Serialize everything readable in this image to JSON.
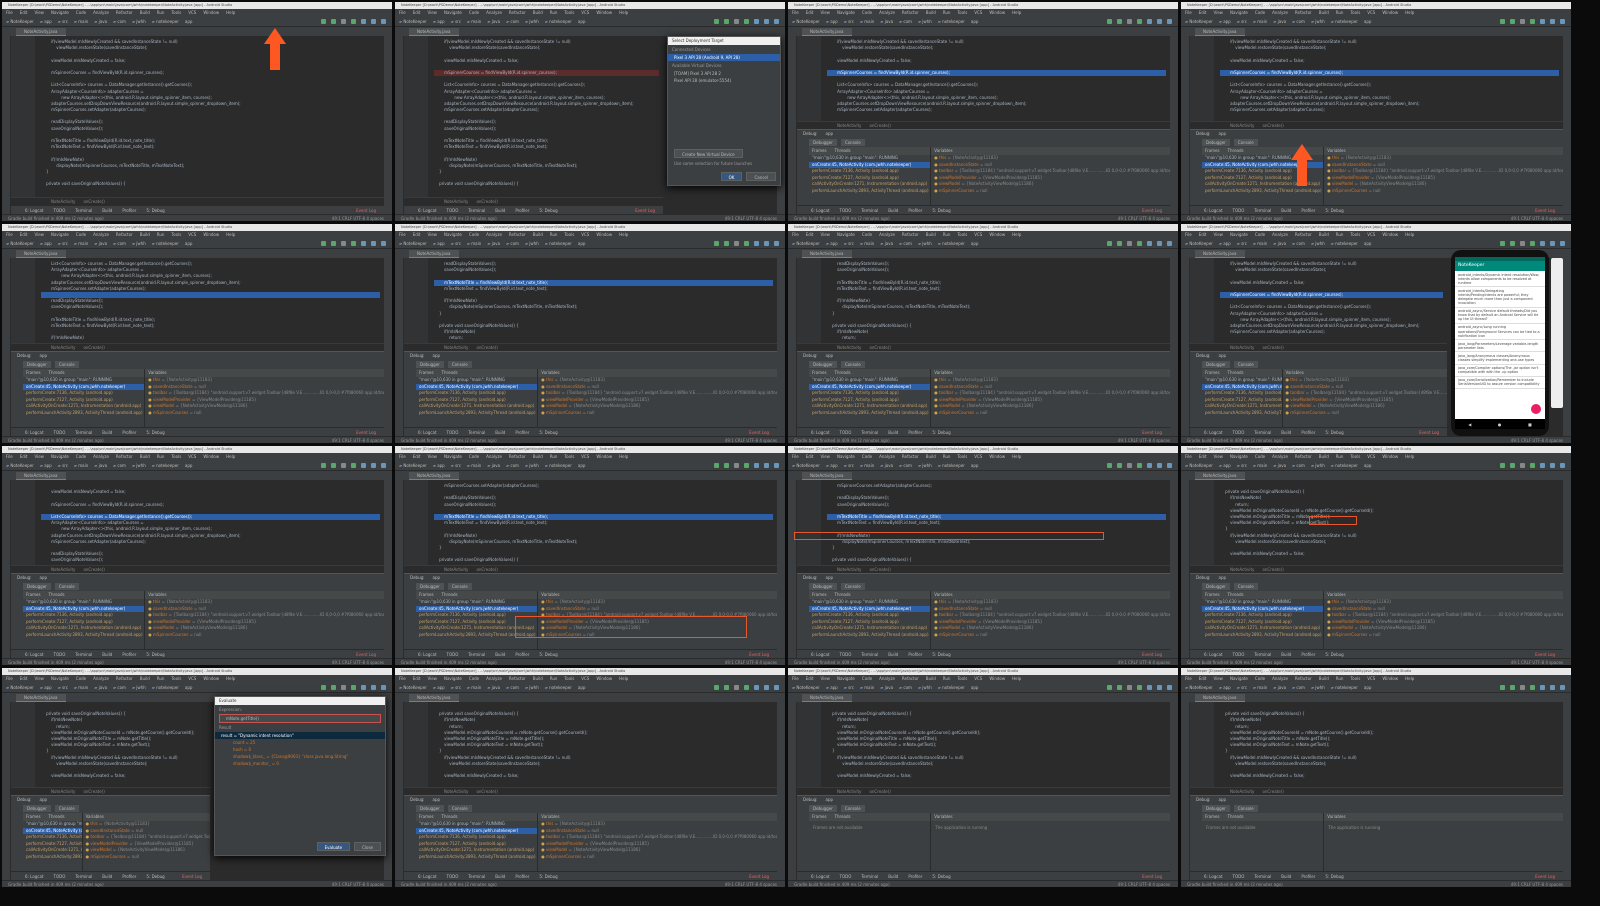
{
  "window_title": "NoteKeeper [D:\\work\\PSDemo\\NoteKeeper] - ...\\app\\src\\main\\java\\com\\jwhh\\notekeeper\\NoteActivity.java [app] - Android Studio",
  "menu": [
    "File",
    "Edit",
    "View",
    "Navigate",
    "Code",
    "Analyze",
    "Refactor",
    "Build",
    "Run",
    "Tools",
    "VCS",
    "Window",
    "Help"
  ],
  "toolbar_crumbs": [
    "NoteKeeper",
    "app",
    "src",
    "main",
    "java",
    "com",
    "jwhh",
    "notekeeper"
  ],
  "run_config": "app",
  "editor_tab": "NoteActivity.java",
  "code_breadcrumb": [
    "NoteActivity",
    "onCreate()"
  ],
  "code_lines": [
    "        if(viewModel.mIsNewlyCreated && savedInstanceState != null)",
    "            viewModel.restoreState(savedInstanceState);",
    "",
    "        viewModel.mIsNewlyCreated = false;",
    "",
    "        mSpinnerCourses = findViewById(R.id.spinner_courses);",
    "",
    "        List<CourseInfo> courses = DataManager.getInstance().getCourses();",
    "        ArrayAdapter<CourseInfo> adapterCourses =",
    "                new ArrayAdapter<>(this, android.R.layout.simple_spinner_item, courses);",
    "        adapterCourses.setDropDownViewResource(android.R.layout.simple_spinner_dropdown_item);",
    "        mSpinnerCourses.setAdapter(adapterCourses);",
    "",
    "        readDisplayStateValues();",
    "        saveOriginalNoteValues();",
    "",
    "        mTextNoteTitle = findViewById(R.id.text_note_title);",
    "        mTextNoteText = findViewById(R.id.text_note_text);",
    "",
    "        if(!mIsNewNote)",
    "            displayNote(mSpinnerCourses, mTextNoteTitle, mTextNoteText);",
    "    }",
    "",
    "    private void saveOriginalNoteValues() {",
    "        if(mIsNewNote)",
    "            return;",
    "        viewModel.mOriginalNoteCourseId = mNote.getCourse().getCourseId();",
    "        viewModel.mOriginalNoteTitle = mNote.getTitle();",
    "        viewModel.mOriginalNoteText = mNote.getText();",
    "    }"
  ],
  "debug": {
    "label": "Debug:",
    "config": "app",
    "tabs": [
      "Debugger",
      "Console"
    ],
    "frames_header": "Frames",
    "threads_header": "Threads",
    "variables_header": "Variables",
    "thread": "\"main\"@10,630 in group \"main\": RUNNING",
    "frames": [
      "onCreate:45, NoteActivity (com.jwhh.notekeeper)",
      "performCreate:7136, Activity (android.app)",
      "performCreate:7127, Activity (android.app)",
      "callActivityOnCreate:1271, Instrumentation (android.app)",
      "performLaunchActivity:2893, ActivityThread (android.app)"
    ],
    "variables": [
      {
        "name": "this",
        "value": " = {NoteActivity@11183}"
      },
      {
        "name": "savedInstanceState",
        "value": " = null"
      },
      {
        "name": "toolbar",
        "value": " = {Toolbar@11184} \"android.support.v7.widget.Toolbar{d8f8e V.E...... .......ID 0,0-0,0 #7f080060 app:id/toolbar}\""
      },
      {
        "name": "viewModelProvider",
        "value": " = {ViewModelProvider@11185}"
      },
      {
        "name": "viewModel",
        "value": " = {NoteActivityViewModel@11186}"
      },
      {
        "name": "mSpinnerCourses",
        "value": " = null"
      }
    ],
    "running_text": "The application is running",
    "frames_unavailable": "Frames are not available"
  },
  "tool_tabs": [
    "6: Logcat",
    "TODO",
    "Terminal",
    "Build",
    "Profiler",
    "5: Debug"
  ],
  "event_log": "Event Log",
  "status_text": "Gradle build finished in 409 ms (2 minutes ago)",
  "status_right": "49:1  CRLF  UTF-8  4 spaces",
  "deploy_dialog": {
    "title": "Select Deployment Target",
    "connected_header": "Connected Devices",
    "connected": "Pixel 3 API 28 (Android 9, API 28)",
    "virtual_header": "Available Virtual Devices",
    "virtual": [
      "[TOAM] Pixel 3 API 28 2",
      "Pixel API 28 (emulator-5554)"
    ],
    "create_button": "Create New Virtual Device",
    "remember_label": "Use same selection for future launches",
    "ok": "OK",
    "cancel": "Cancel"
  },
  "evaluate_dialog": {
    "title": "Evaluate",
    "expression_label": "Expression:",
    "expression": "mNote.getTitle()",
    "result_label": "Result",
    "result": "result = \"Dynamic intent resolution\"",
    "fields": [
      "count = 25",
      "hash = 0",
      "shadow$_klass_ = {Class@9003} \"class java.lang.String\"",
      "shadow$_monitor_ = 0"
    ],
    "evaluate_button": "Evaluate",
    "close_button": "Close"
  },
  "phone": {
    "app_title": "NoteKeeper",
    "notes": [
      "android_intents/Dynamic intent resolution/Wow, intents allow components to be resolved at runtime",
      "android_intents/Delegating intents/PendingIntents are powerful; they delegate much more than just a component invocation",
      "android_async/Service default threads/Did you know that by default an Android Service will tie up the UI thread?",
      "android_async/Long running operations/Foreground Services can be tied to a notification icon",
      "java_lang/Parameters/Leverage variable-length parameter lists",
      "java_lang/Anonymous classes/Anonymous classes simplify implementing one-use types",
      "java_core/Compiler options/The -jar option isn't compatible with with the -cp option",
      "java_core/Serialization/Remember to include SerialVersionUID to assure version compatibility"
    ]
  },
  "accent_color": "#ff5722",
  "highlight_color": "#2d5fa8"
}
